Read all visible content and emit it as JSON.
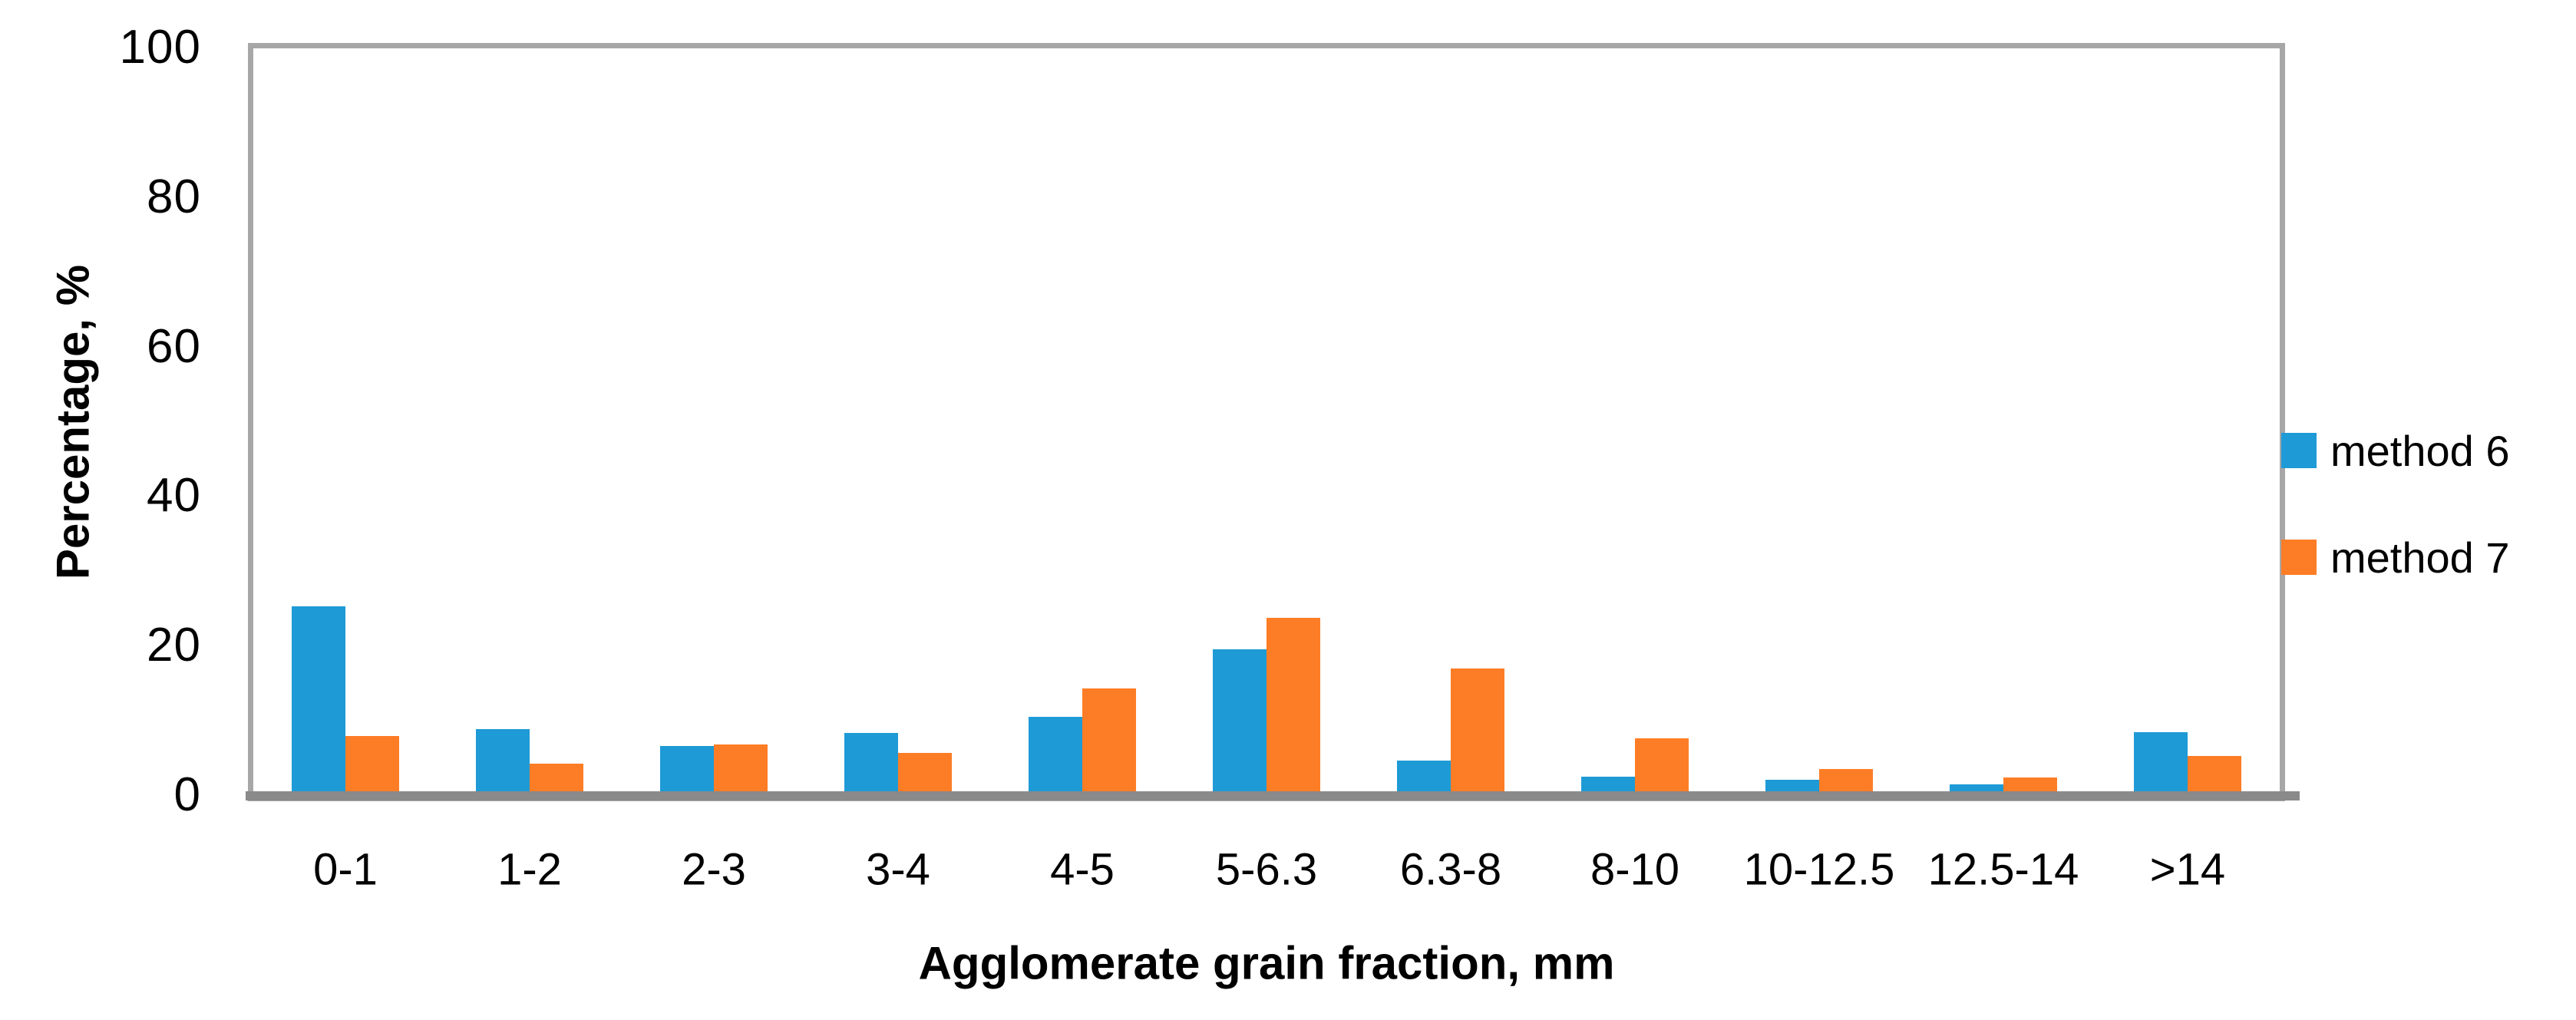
{
  "chart_data": {
    "type": "bar",
    "title": "",
    "xlabel": "Agglomerate grain fraction, mm",
    "ylabel": "Percentage, %",
    "categories": [
      "0-1",
      "1-2",
      "2-3",
      "3-4",
      "4-5",
      "5-6.3",
      "6.3-8",
      "8-10",
      "10-12.5",
      "12.5-14",
      ">14"
    ],
    "series": [
      {
        "name": "method 6",
        "color": "#1E9AD6",
        "values": [
          25.4,
          8.9,
          6.7,
          8.4,
          10.6,
          19.6,
          4.7,
          2.6,
          2.2,
          1.5,
          8.5
        ]
      },
      {
        "name": "method 7",
        "color": "#FD7D26",
        "values": [
          8.0,
          4.3,
          6.9,
          5.7,
          14.4,
          23.8,
          17.0,
          7.7,
          3.6,
          2.5,
          5.3
        ]
      }
    ],
    "ylim": [
      0,
      100
    ],
    "yticks": [
      0,
      20,
      40,
      60,
      80,
      100
    ],
    "grid": false,
    "legend_position": "right"
  },
  "frame_colors": {
    "plot_border": "#A7A7A7",
    "baseline": "#8A8A8A"
  }
}
